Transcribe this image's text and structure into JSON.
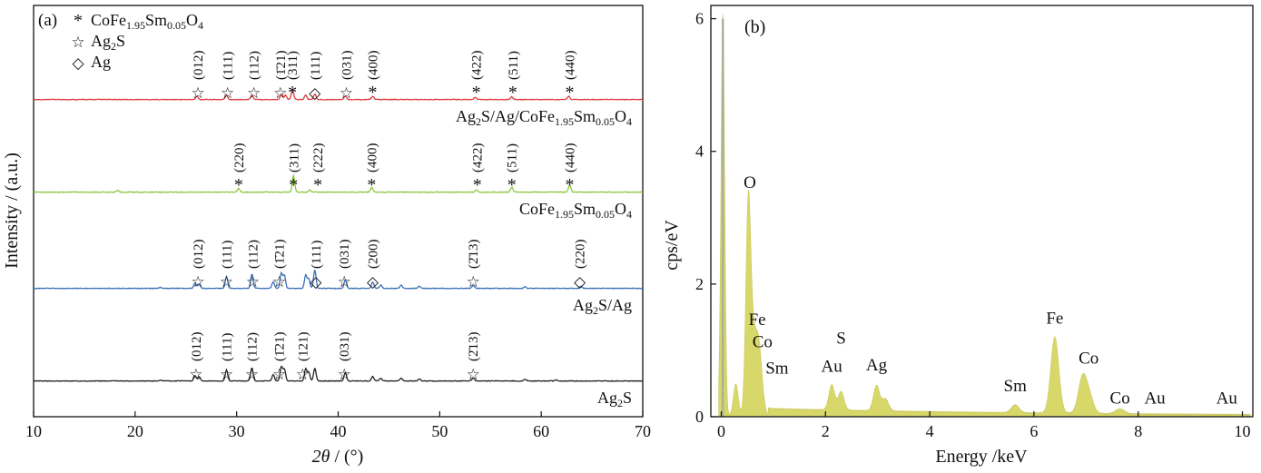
{
  "panels": {
    "a": {
      "label": "(a)",
      "xlabel_theta": "2θ",
      "xlabel_unit": " / (°)",
      "ylabel": "Intensity / (a.u.)",
      "legend": [
        {
          "symbol": "*",
          "text": "CoFe",
          "sub": "1.95",
          "text2": "Sm",
          "sub2": "0.05",
          "text3": "O",
          "sub3": "4"
        },
        {
          "symbol": "☆",
          "text": "Ag",
          "sub": "2",
          "text2": "S",
          "sub2": "",
          "text3": "",
          "sub3": ""
        },
        {
          "symbol": "◇",
          "text": "Ag",
          "sub": "",
          "text2": "",
          "sub2": "",
          "text3": "",
          "sub3": ""
        }
      ]
    },
    "b": {
      "label": "(b)",
      "xlabel": "Energy /keV",
      "ylabel": "cps/eV"
    }
  },
  "chart_data": [
    {
      "type": "line",
      "title": "",
      "xlabel": "2θ / (°)",
      "ylabel": "Intensity / (a.u.)",
      "xlim": [
        10,
        70
      ],
      "xticks": [
        10,
        20,
        30,
        40,
        50,
        60,
        70
      ],
      "y_ticks_shown": false,
      "series": [
        {
          "name": "Ag₂S/Ag/CoFe₁.₉₅Sm₀.₀₅O₄",
          "label_parts": [
            "Ag",
            "2",
            "S/Ag/CoFe",
            "1.95",
            "Sm",
            "0.05",
            "O",
            "4"
          ],
          "color": "#e0393e",
          "offset": 3,
          "peaks": [
            [
              26.1,
              0.3
            ],
            [
              29.0,
              0.4
            ],
            [
              31.5,
              0.4
            ],
            [
              34.4,
              0.5
            ],
            [
              34.8,
              0.4
            ],
            [
              35.5,
              0.9
            ],
            [
              36.8,
              0.4
            ],
            [
              37.7,
              0.5
            ],
            [
              40.7,
              0.3
            ],
            [
              43.4,
              0.3
            ],
            [
              53.5,
              0.2
            ],
            [
              57.1,
              0.25
            ],
            [
              62.7,
              0.3
            ]
          ],
          "markers": [
            {
              "x": 26.2,
              "sym": "☆",
              "hkl": "(012)"
            },
            {
              "x": 29.1,
              "sym": "☆",
              "hkl": "(111)"
            },
            {
              "x": 31.7,
              "sym": "☆",
              "hkl": "(112)"
            },
            {
              "x": 34.3,
              "sym": "☆",
              "hkl": "(1̄21)"
            },
            {
              "x": 35.5,
              "sym": "*",
              "hkl": "(311)"
            },
            {
              "x": 37.7,
              "sym": "◇",
              "hkl": "(111)"
            },
            {
              "x": 40.8,
              "sym": "☆",
              "hkl": "(031)"
            },
            {
              "x": 43.4,
              "sym": "*",
              "hkl": "(400)"
            },
            {
              "x": 53.6,
              "sym": "*",
              "hkl": "(422)"
            },
            {
              "x": 57.2,
              "sym": "*",
              "hkl": "(511)"
            },
            {
              "x": 62.8,
              "sym": "*",
              "hkl": "(440)"
            }
          ]
        },
        {
          "name": "CoFe₁.₉₅Sm₀.₀₅O₄",
          "label_parts": [
            "CoFe",
            "1.95",
            "Sm",
            "0.05",
            "O",
            "4"
          ],
          "color": "#8dc63f",
          "offset": 2,
          "peaks": [
            [
              18.3,
              0.15
            ],
            [
              30.2,
              0.35
            ],
            [
              35.6,
              1.5
            ],
            [
              37.2,
              0.2
            ],
            [
              43.3,
              0.45
            ],
            [
              53.6,
              0.2
            ],
            [
              57.1,
              0.45
            ],
            [
              62.8,
              0.65
            ]
          ],
          "markers": [
            {
              "x": 30.2,
              "sym": "*",
              "hkl": "(220)"
            },
            {
              "x": 35.6,
              "sym": "*",
              "hkl": "(311)"
            },
            {
              "x": 38.0,
              "sym": "*",
              "hkl": "(222)"
            },
            {
              "x": 43.3,
              "sym": "*",
              "hkl": "(400)"
            },
            {
              "x": 53.7,
              "sym": "*",
              "hkl": "(422)"
            },
            {
              "x": 57.1,
              "sym": "*",
              "hkl": "(511)"
            },
            {
              "x": 62.8,
              "sym": "*",
              "hkl": "(440)"
            }
          ]
        },
        {
          "name": "Ag₂S/Ag",
          "label_parts": [
            "Ag",
            "2",
            "S/Ag",
            "",
            "",
            "",
            "",
            ""
          ],
          "color": "#3a6fb7",
          "offset": 1,
          "peaks": [
            [
              22.5,
              0.1
            ],
            [
              25.9,
              0.5
            ],
            [
              26.3,
              0.4
            ],
            [
              29.0,
              1.1
            ],
            [
              31.5,
              1.3
            ],
            [
              33.6,
              0.6
            ],
            [
              34.4,
              1.4
            ],
            [
              34.7,
              1.2
            ],
            [
              36.8,
              1.2
            ],
            [
              37.1,
              0.9
            ],
            [
              37.7,
              1.7
            ],
            [
              40.7,
              0.8
            ],
            [
              43.4,
              0.6
            ],
            [
              44.2,
              0.3
            ],
            [
              46.2,
              0.3
            ],
            [
              48.0,
              0.2
            ],
            [
              53.3,
              0.25
            ],
            [
              58.4,
              0.15
            ],
            [
              63.9,
              0.2
            ]
          ],
          "markers": [
            {
              "x": 26.2,
              "sym": "☆",
              "hkl": "(012)"
            },
            {
              "x": 29.0,
              "sym": "☆",
              "hkl": "(111)"
            },
            {
              "x": 31.6,
              "sym": "☆",
              "hkl": "(112)"
            },
            {
              "x": 34.2,
              "sym": "☆",
              "hkl": "(1̄21)"
            },
            {
              "x": 37.8,
              "sym": "◇",
              "hkl": "(111)"
            },
            {
              "x": 40.6,
              "sym": "☆",
              "hkl": "(031)"
            },
            {
              "x": 43.4,
              "sym": "◇",
              "hkl": "(200)"
            },
            {
              "x": 53.3,
              "sym": "☆",
              "hkl": "(2̄13)"
            },
            {
              "x": 63.8,
              "sym": "◇",
              "hkl": "(220)"
            }
          ]
        },
        {
          "name": "Ag₂S",
          "label_parts": [
            "Ag",
            "2",
            "S",
            "",
            "",
            "",
            "",
            ""
          ],
          "color": "#222222",
          "offset": 0,
          "peaks": [
            [
              22.5,
              0.1
            ],
            [
              25.9,
              0.5
            ],
            [
              26.3,
              0.4
            ],
            [
              29.0,
              1.0
            ],
            [
              31.5,
              1.2
            ],
            [
              33.6,
              0.6
            ],
            [
              34.4,
              1.3
            ],
            [
              34.7,
              1.1
            ],
            [
              36.8,
              1.1
            ],
            [
              37.1,
              0.8
            ],
            [
              37.7,
              1.2
            ],
            [
              40.7,
              0.8
            ],
            [
              43.4,
              0.4
            ],
            [
              44.2,
              0.25
            ],
            [
              46.2,
              0.25
            ],
            [
              48.0,
              0.2
            ],
            [
              53.3,
              0.25
            ],
            [
              58.4,
              0.15
            ],
            [
              61.5,
              0.1
            ]
          ],
          "markers": [
            {
              "x": 26.0,
              "sym": "☆",
              "hkl": "(012)"
            },
            {
              "x": 29.0,
              "sym": "☆",
              "hkl": "(111)"
            },
            {
              "x": 31.5,
              "sym": "☆",
              "hkl": "(112)"
            },
            {
              "x": 34.2,
              "sym": "☆",
              "hkl": "(1̄21)"
            },
            {
              "x": 36.5,
              "sym": "☆",
              "hkl": "(121)"
            },
            {
              "x": 40.6,
              "sym": "☆",
              "hkl": "(031)"
            },
            {
              "x": 53.3,
              "sym": "☆",
              "hkl": "(2̄13)"
            }
          ]
        }
      ]
    },
    {
      "type": "area",
      "title": "",
      "xlabel": "Energy /keV",
      "ylabel": "cps/eV",
      "xlim": [
        -0.2,
        10.2
      ],
      "ylim": [
        0,
        6.2
      ],
      "xticks": [
        0,
        2,
        4,
        6,
        8,
        10
      ],
      "yticks": [
        0,
        2,
        4,
        6
      ],
      "fill_color": "#d8d76a",
      "peaks": [
        {
          "x": 0.03,
          "y": 6.05
        },
        {
          "x": 0.28,
          "y": 0.48
        },
        {
          "x": 0.52,
          "y": 3.28
        },
        {
          "x": 0.62,
          "y": 1.0
        },
        {
          "x": 0.71,
          "y": 0.95
        },
        {
          "x": 0.78,
          "y": 0.32
        },
        {
          "x": 2.12,
          "y": 0.38
        },
        {
          "x": 2.3,
          "y": 0.28
        },
        {
          "x": 2.98,
          "y": 0.38
        },
        {
          "x": 3.15,
          "y": 0.18
        },
        {
          "x": 5.64,
          "y": 0.12
        },
        {
          "x": 6.4,
          "y": 1.15
        },
        {
          "x": 6.93,
          "y": 0.52
        },
        {
          "x": 7.06,
          "y": 0.25
        },
        {
          "x": 7.65,
          "y": 0.07
        }
      ],
      "element_labels": [
        {
          "text": "O",
          "x": 0.55,
          "y": 3.45
        },
        {
          "text": "Fe",
          "x": 0.69,
          "y": 1.38
        },
        {
          "text": "Co",
          "x": 0.79,
          "y": 1.05
        },
        {
          "text": "Sm",
          "x": 1.07,
          "y": 0.65
        },
        {
          "text": "S",
          "x": 2.3,
          "y": 1.1
        },
        {
          "text": "Au",
          "x": 2.12,
          "y": 0.68
        },
        {
          "text": "Ag",
          "x": 2.98,
          "y": 0.7
        },
        {
          "text": "Fe",
          "x": 6.4,
          "y": 1.4
        },
        {
          "text": "Co",
          "x": 7.05,
          "y": 0.8
        },
        {
          "text": "Sm",
          "x": 5.64,
          "y": 0.38
        },
        {
          "text": "Co",
          "x": 7.65,
          "y": 0.2
        },
        {
          "text": "Au",
          "x": 8.32,
          "y": 0.2
        },
        {
          "text": "Au",
          "x": 9.7,
          "y": 0.2
        }
      ]
    }
  ]
}
